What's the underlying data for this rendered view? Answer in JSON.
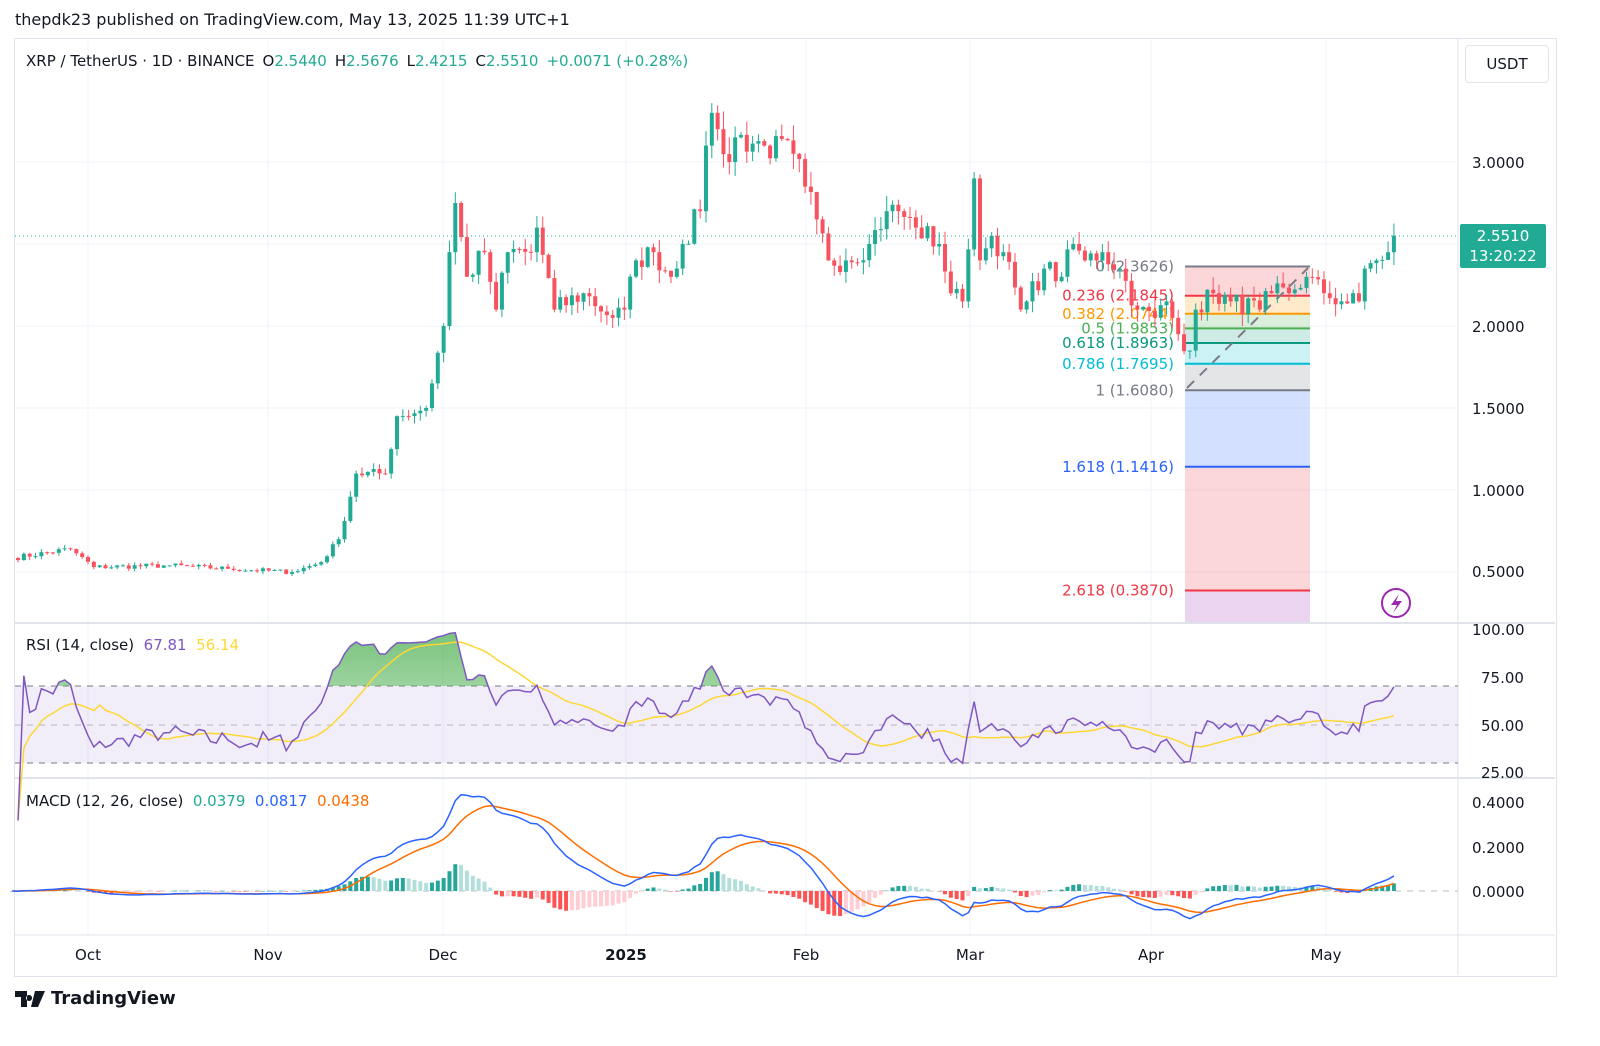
{
  "published": "thepdk23 published on TradingView.com, May 13, 2025 11:39 UTC+1",
  "symbol": {
    "title": "XRP / TetherUS · 1D · BINANCE",
    "o_label": "O",
    "o": "2.5440",
    "h_label": "H",
    "h": "2.5676",
    "l_label": "L",
    "l": "2.4215",
    "c_label": "C",
    "c": "2.5510",
    "change": "+0.0071 (+0.28%)"
  },
  "currency_button": "USDT",
  "last_price": {
    "value": "2.5510",
    "countdown": "13:20:22"
  },
  "price_axis": [
    "3.0000",
    "2.0000",
    "1.5000",
    "1.0000",
    "0.5000"
  ],
  "time_axis": [
    "Oct",
    "Nov",
    "Dec",
    "2025",
    "Feb",
    "Mar",
    "Apr",
    "May"
  ],
  "rsi": {
    "label": "RSI (14, close)",
    "value": "67.81",
    "ma": "56.14",
    "axis": [
      "100.00",
      "75.00",
      "50.00",
      "25.00"
    ],
    "colors": {
      "rsi": "#7e57c2",
      "ma": "#fdd835"
    }
  },
  "macd": {
    "label": "MACD (12, 26, close)",
    "hist": "0.0379",
    "macd": "0.0817",
    "signal": "0.0438",
    "axis": [
      "0.4000",
      "0.2000",
      "0.0000"
    ],
    "colors": {
      "hist": "#26a69a",
      "macd": "#2962ff",
      "signal": "#ff6d00"
    }
  },
  "fib": {
    "levels": [
      {
        "label": "0 (2.3626)",
        "ratio": 0,
        "price": 2.3626,
        "color": "#787b86"
      },
      {
        "label": "0.236 (2.1845)",
        "ratio": 0.236,
        "price": 2.1845,
        "color": "#f23645"
      },
      {
        "label": "0.382 (2.0744)",
        "ratio": 0.382,
        "price": 2.0744,
        "color": "#ff9800"
      },
      {
        "label": "0.5 (1.9853)",
        "ratio": 0.5,
        "price": 1.9853,
        "color": "#4caf50"
      },
      {
        "label": "0.618 (1.8963)",
        "ratio": 0.618,
        "price": 1.8963,
        "color": "#089981"
      },
      {
        "label": "0.786 (1.7695)",
        "ratio": 0.786,
        "price": 1.7695,
        "color": "#00bcd4"
      },
      {
        "label": "1 (1.6080)",
        "ratio": 1,
        "price": 1.608,
        "color": "#787b86"
      },
      {
        "label": "1.618 (1.1416)",
        "ratio": 1.618,
        "price": 1.1416,
        "color": "#2962ff"
      },
      {
        "label": "2.618 (0.3870)",
        "ratio": 2.618,
        "price": 0.387,
        "color": "#f23645"
      }
    ]
  },
  "colors": {
    "up": "#22ab94",
    "down": "#f7525f",
    "grid": "#f0f3fa"
  },
  "brand": "TradingView",
  "chart_data": {
    "type": "candlestick",
    "title": "XRP / TetherUS · 1D · BINANCE",
    "ylim": [
      0.3,
      3.4
    ],
    "grid": true,
    "close_path": [
      [
        "2024-09-18",
        0.585
      ],
      [
        "2024-09-28",
        0.64
      ],
      [
        "2024-10-02",
        0.53
      ],
      [
        "2024-10-15",
        0.54
      ],
      [
        "2024-10-25",
        0.52
      ],
      [
        "2024-11-05",
        0.5
      ],
      [
        "2024-11-10",
        0.56
      ],
      [
        "2024-11-13",
        0.7
      ],
      [
        "2024-11-16",
        1.1
      ],
      [
        "2024-11-21",
        1.1
      ],
      [
        "2024-11-23",
        1.45
      ],
      [
        "2024-11-28",
        1.5
      ],
      [
        "2024-12-01",
        2.0
      ],
      [
        "2024-12-02",
        2.45
      ],
      [
        "2024-12-03",
        2.75
      ],
      [
        "2024-12-05",
        2.3
      ],
      [
        "2024-12-08",
        2.45
      ],
      [
        "2024-12-10",
        2.1
      ],
      [
        "2024-12-12",
        2.45
      ],
      [
        "2024-12-16",
        2.45
      ],
      [
        "2024-12-17",
        2.6
      ],
      [
        "2024-12-20",
        2.1
      ],
      [
        "2024-12-25",
        2.2
      ],
      [
        "2024-12-30",
        2.05
      ],
      [
        "2025-01-01",
        2.1
      ],
      [
        "2025-01-03",
        2.4
      ],
      [
        "2025-01-06",
        2.45
      ],
      [
        "2025-01-09",
        2.3
      ],
      [
        "2025-01-11",
        2.5
      ],
      [
        "2025-01-14",
        2.7
      ],
      [
        "2025-01-15",
        3.1
      ],
      [
        "2025-01-16",
        3.3
      ],
      [
        "2025-01-17",
        3.2
      ],
      [
        "2025-01-19",
        3.0
      ],
      [
        "2025-01-20",
        3.15
      ],
      [
        "2025-01-25",
        3.1
      ],
      [
        "2025-01-30",
        3.05
      ],
      [
        "2025-02-01",
        2.85
      ],
      [
        "2025-02-03",
        2.65
      ],
      [
        "2025-02-05",
        2.4
      ],
      [
        "2025-02-08",
        2.4
      ],
      [
        "2025-02-12",
        2.5
      ],
      [
        "2025-02-15",
        2.7
      ],
      [
        "2025-02-17",
        2.7
      ],
      [
        "2025-02-20",
        2.6
      ],
      [
        "2025-02-24",
        2.5
      ],
      [
        "2025-02-26",
        2.2
      ],
      [
        "2025-02-28",
        2.15
      ],
      [
        "2025-03-02",
        2.9
      ],
      [
        "2025-03-03",
        2.4
      ],
      [
        "2025-03-05",
        2.55
      ],
      [
        "2025-03-07",
        2.45
      ],
      [
        "2025-03-10",
        2.1
      ],
      [
        "2025-03-11",
        2.15
      ],
      [
        "2025-03-14",
        2.35
      ],
      [
        "2025-03-17",
        2.3
      ],
      [
        "2025-03-19",
        2.5
      ],
      [
        "2025-03-21",
        2.4
      ],
      [
        "2025-03-24",
        2.45
      ],
      [
        "2025-03-27",
        2.35
      ],
      [
        "2025-03-30",
        2.1
      ],
      [
        "2025-04-02",
        2.05
      ],
      [
        "2025-04-04",
        2.15
      ],
      [
        "2025-04-06",
        1.95
      ],
      [
        "2025-04-08",
        1.85
      ],
      [
        "2025-04-09",
        2.1
      ],
      [
        "2025-04-12",
        2.2
      ],
      [
        "2025-04-15",
        2.15
      ],
      [
        "2025-04-20",
        2.1
      ],
      [
        "2025-04-22",
        2.2
      ],
      [
        "2025-04-25",
        2.2
      ],
      [
        "2025-04-28",
        2.3
      ],
      [
        "2025-05-01",
        2.2
      ],
      [
        "2025-05-04",
        2.15
      ],
      [
        "2025-05-07",
        2.15
      ],
      [
        "2025-05-08",
        2.35
      ],
      [
        "2025-05-10",
        2.4
      ],
      [
        "2025-05-12",
        2.45
      ],
      [
        "2025-05-13",
        2.551
      ]
    ]
  }
}
